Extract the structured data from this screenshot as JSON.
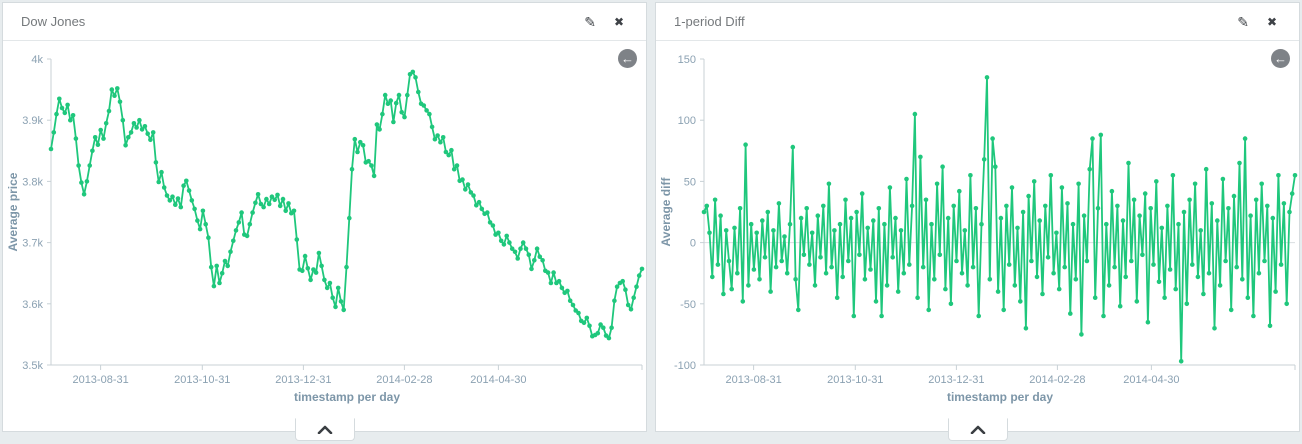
{
  "page": {
    "background": "#e7ecee",
    "panel_background": "#ffffff",
    "panel_border": "#d5dbde",
    "axis_color": "#c8d1d6",
    "grid_color": "#d9dee1",
    "tick_color": "#8ba1b2",
    "axis_title_color": "#7d96a8",
    "title_color": "#75797c",
    "icon_color": "#3e4247",
    "accent_green": "#1fc77c"
  },
  "icons": {
    "edit": {
      "name": "pencil-icon",
      "glyph": "✎"
    },
    "close": {
      "name": "close-icon",
      "glyph": "✖"
    },
    "back": {
      "name": "back-arrow-icon",
      "glyph": "←"
    }
  },
  "panels": [
    {
      "title": "Dow Jones"
    },
    {
      "title": "1-period Diff"
    }
  ],
  "chart_data": [
    {
      "type": "line",
      "title": "Dow Jones",
      "xlabel": "timestamp per day",
      "ylabel": "Average price",
      "ylim": [
        3500,
        4000
      ],
      "ytick_values": [
        4000,
        3900,
        3800,
        3700,
        3600,
        3500
      ],
      "ytick_labels": [
        "4k",
        "3.9k",
        "3.8k",
        "3.7k",
        "3.6k",
        "3.5k"
      ],
      "xticks": [
        {
          "f": 0.084,
          "label": "2013-08-31"
        },
        {
          "f": 0.256,
          "label": "2013-10-31"
        },
        {
          "f": 0.427,
          "label": "2013-12-31"
        },
        {
          "f": 0.598,
          "label": "2014-02-28"
        },
        {
          "f": 0.757,
          "label": "2014-04-30"
        }
      ],
      "zero_line": false,
      "legend": "none",
      "color": "#1fc77c",
      "values": [
        3853,
        3880,
        3910,
        3935,
        3920,
        3912,
        3925,
        3900,
        3908,
        3870,
        3826,
        3798,
        3779,
        3800,
        3826,
        3850,
        3872,
        3860,
        3884,
        3870,
        3895,
        3915,
        3950,
        3940,
        3952,
        3930,
        3900,
        3859,
        3872,
        3880,
        3895,
        3888,
        3900,
        3885,
        3890,
        3878,
        3868,
        3880,
        3831,
        3799,
        3815,
        3790,
        3777,
        3769,
        3775,
        3762,
        3772,
        3758,
        3793,
        3801,
        3785,
        3769,
        3755,
        3736,
        3722,
        3752,
        3730,
        3708,
        3660,
        3629,
        3662,
        3634,
        3650,
        3670,
        3662,
        3685,
        3703,
        3720,
        3733,
        3749,
        3713,
        3711,
        3730,
        3749,
        3765,
        3779,
        3763,
        3758,
        3771,
        3763,
        3775,
        3770,
        3778,
        3760,
        3771,
        3752,
        3764,
        3748,
        3752,
        3705,
        3656,
        3654,
        3678,
        3658,
        3639,
        3656,
        3651,
        3683,
        3662,
        3639,
        3626,
        3634,
        3610,
        3595,
        3626,
        3604,
        3590,
        3660,
        3740,
        3820,
        3869,
        3848,
        3864,
        3859,
        3831,
        3833,
        3826,
        3809,
        3893,
        3885,
        3910,
        3941,
        3927,
        3932,
        3897,
        3928,
        3941,
        3913,
        3905,
        3941,
        3975,
        3979,
        3970,
        3946,
        3927,
        3924,
        3916,
        3910,
        3889,
        3869,
        3875,
        3864,
        3872,
        3848,
        3843,
        3851,
        3820,
        3826,
        3801,
        3803,
        3787,
        3795,
        3782,
        3777,
        3761,
        3766,
        3755,
        3747,
        3749,
        3733,
        3728,
        3713,
        3716,
        3703,
        3697,
        3711,
        3700,
        3690,
        3685,
        3674,
        3690,
        3700,
        3690,
        3680,
        3657,
        3671,
        3690,
        3677,
        3671,
        3654,
        3651,
        3634,
        3651,
        3634,
        3637,
        3626,
        3618,
        3621,
        3605,
        3598,
        3589,
        3585,
        3572,
        3569,
        3577,
        3564,
        3547,
        3549,
        3552,
        3566,
        3561,
        3548,
        3544,
        3561,
        3605,
        3628,
        3634,
        3637,
        3623,
        3598,
        3591,
        3610,
        3628,
        3646,
        3657
      ]
    },
    {
      "type": "line",
      "title": "1-period Diff",
      "xlabel": "timestamp per day",
      "ylabel": "Average diff",
      "ylim": [
        -100,
        150
      ],
      "ytick_values": [
        150,
        100,
        50,
        0,
        -50,
        -100
      ],
      "ytick_labels": [
        "150",
        "100",
        "50",
        "0",
        "-50",
        "-100"
      ],
      "xticks": [
        {
          "f": 0.084,
          "label": "2013-08-31"
        },
        {
          "f": 0.256,
          "label": "2013-10-31"
        },
        {
          "f": 0.427,
          "label": "2013-12-31"
        },
        {
          "f": 0.598,
          "label": "2014-02-28"
        },
        {
          "f": 0.757,
          "label": "2014-04-30"
        }
      ],
      "zero_line": true,
      "legend": "none",
      "color": "#1fc77c",
      "values": [
        25,
        30,
        8,
        -28,
        35,
        -18,
        22,
        -42,
        10,
        -15,
        -38,
        12,
        -25,
        28,
        -48,
        80,
        -35,
        15,
        -22,
        8,
        -30,
        18,
        -12,
        25,
        -40,
        10,
        -20,
        32,
        -15,
        5,
        -25,
        15,
        78,
        -30,
        -55,
        20,
        -10,
        28,
        -18,
        8,
        -35,
        22,
        -12,
        30,
        -25,
        48,
        -20,
        10,
        -45,
        15,
        -28,
        35,
        -15,
        20,
        -60,
        25,
        -10,
        40,
        -30,
        12,
        -22,
        18,
        -48,
        28,
        -60,
        15,
        -35,
        45,
        -12,
        20,
        -40,
        10,
        -25,
        52,
        -18,
        30,
        105,
        -45,
        70,
        -20,
        35,
        -55,
        15,
        -30,
        48,
        -10,
        62,
        -38,
        20,
        -50,
        30,
        -15,
        42,
        -25,
        10,
        -35,
        55,
        -20,
        28,
        -60,
        15,
        68,
        135,
        -30,
        85,
        62,
        -40,
        20,
        -55,
        30,
        -18,
        45,
        -35,
        12,
        -48,
        25,
        -70,
        38,
        -15,
        50,
        -28,
        18,
        -42,
        30,
        -12,
        55,
        -25,
        8,
        -38,
        45,
        -20,
        32,
        -58,
        15,
        -30,
        48,
        -75,
        22,
        -15,
        60,
        85,
        -45,
        28,
        88,
        -60,
        15,
        -35,
        42,
        -20,
        30,
        -52,
        18,
        -28,
        65,
        -15,
        35,
        -48,
        22,
        -10,
        40,
        -65,
        28,
        -18,
        50,
        -32,
        12,
        -45,
        30,
        -22,
        55,
        -38,
        15,
        -97,
        25,
        -50,
        35,
        -18,
        48,
        -28,
        10,
        -42,
        60,
        -25,
        32,
        -70,
        18,
        -35,
        52,
        -15,
        28,
        -55,
        38,
        -20,
        65,
        -30,
        85,
        -45,
        22,
        -60,
        35,
        -25,
        48,
        -15,
        30,
        -68,
        20,
        -40,
        55,
        -18,
        32,
        -50,
        25,
        40,
        55
      ]
    }
  ]
}
